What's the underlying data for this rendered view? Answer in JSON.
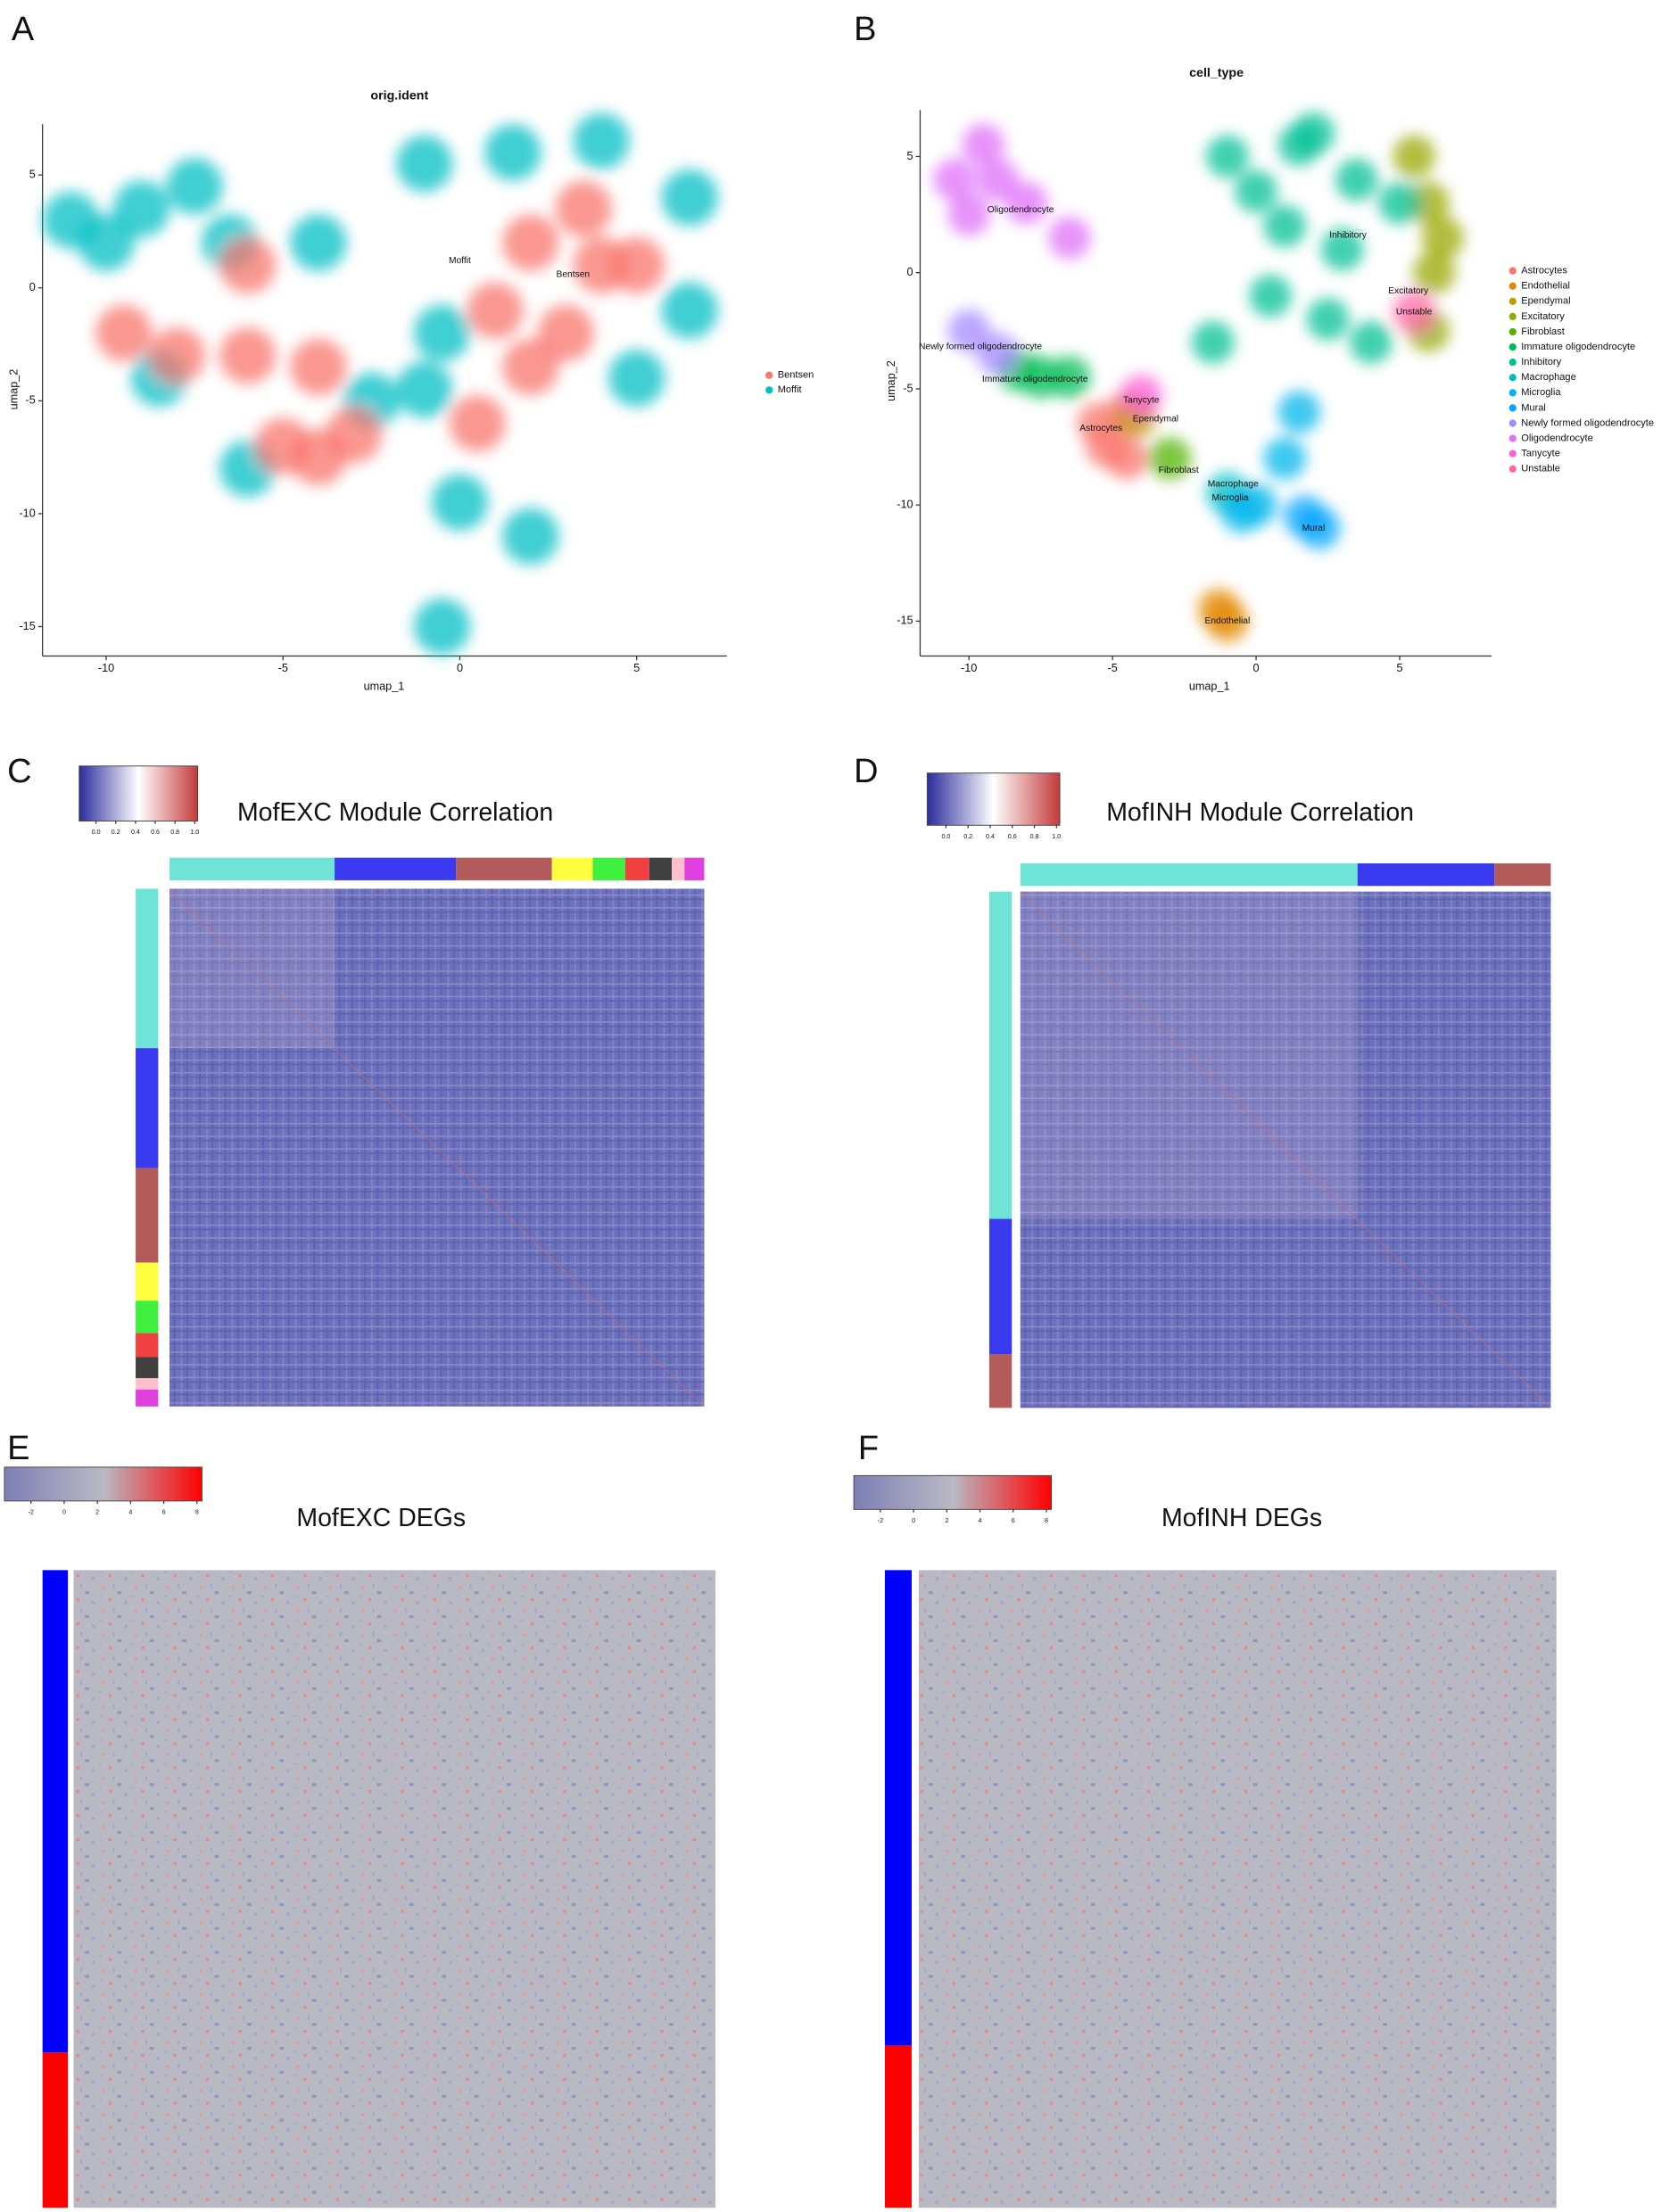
{
  "chart_data": [
    {
      "type": "scatter",
      "panel": "A",
      "title": "orig.ident",
      "xlabel": "umap_1",
      "ylabel": "umap_2",
      "xlim": [
        -11.8,
        7.55
      ],
      "ylim": [
        -16.3,
        7.25
      ],
      "xticks": [
        -10,
        -5,
        0,
        5
      ],
      "yticks": [
        -15,
        -10,
        -5,
        0,
        5
      ],
      "series": [
        {
          "name": "Bentsen",
          "color": "#F8766D",
          "x": [
            2,
            4,
            3,
            1,
            5,
            -5,
            -4,
            -8,
            -9.5,
            -6,
            -4,
            -6,
            0.5,
            -3,
            3.5,
            2
          ],
          "y": [
            2,
            1,
            -2,
            -1,
            1,
            -7,
            -7.5,
            -3,
            -2,
            -3,
            -3.5,
            1,
            -6,
            -6.5,
            3.5,
            -3.5
          ]
        },
        {
          "name": "Moffit",
          "color": "#00BFC4",
          "x": [
            -9,
            -7.5,
            -6.5,
            -10,
            -1,
            1.5,
            4,
            6.5,
            6.5,
            5,
            -0.5,
            -1,
            -8.5,
            -2.5,
            0,
            2,
            -0.5,
            -6,
            -11,
            -4
          ],
          "y": [
            3.5,
            4.5,
            2,
            2,
            5.5,
            6,
            6.5,
            4,
            -1,
            -4,
            -2,
            -4.5,
            -4,
            -5,
            -9.5,
            -11,
            -15,
            -8,
            3,
            2
          ]
        }
      ],
      "annotations": [
        {
          "text": "Moffit",
          "x": 0,
          "y": 1.2
        },
        {
          "text": "Bentsen",
          "x": 3.2,
          "y": 0.6
        }
      ]
    },
    {
      "type": "scatter",
      "panel": "B",
      "title": "cell_type",
      "xlabel": "umap_1",
      "ylabel": "umap_2",
      "xlim": [
        -11.7,
        8.2
      ],
      "ylim": [
        -16.5,
        7
      ],
      "xticks": [
        -10,
        -5,
        0,
        5
      ],
      "yticks": [
        -15,
        -10,
        -5,
        0,
        5
      ],
      "series": [
        {
          "name": "Astrocytes",
          "color": "#F8766D",
          "x": [
            -5.2,
            -4.5,
            -4.5,
            -5.5
          ],
          "y": [
            -7.5,
            -8,
            -6,
            -6.5
          ]
        },
        {
          "name": "Endothelial",
          "color": "#E38900",
          "x": [
            -1,
            -1.3
          ],
          "y": [
            -15,
            -14.5
          ]
        },
        {
          "name": "Ependymal",
          "color": "#C49A00",
          "x": [
            -4.2
          ],
          "y": [
            -6.2
          ]
        },
        {
          "name": "Excitatory",
          "color": "#99A800",
          "x": [
            6,
            6.2,
            6,
            5.5,
            6.5
          ],
          "y": [
            3,
            0,
            -2.5,
            5,
            1.5
          ]
        },
        {
          "name": "Fibroblast",
          "color": "#53B400",
          "x": [
            -3
          ],
          "y": [
            -8
          ]
        },
        {
          "name": "Immature oligodendrocyte",
          "color": "#00BC56",
          "x": [
            -7.5,
            -6.5,
            -8.3
          ],
          "y": [
            -4.5,
            -4.5,
            -4.2
          ]
        },
        {
          "name": "Inhibitory",
          "color": "#00C094",
          "x": [
            -1,
            1.5,
            3.5,
            1,
            3,
            0.5,
            2.5,
            -1.5,
            4,
            5,
            0,
            2
          ],
          "y": [
            5,
            5.5,
            4,
            2,
            1,
            -1,
            -2,
            -3,
            -3,
            3,
            3.5,
            6
          ]
        },
        {
          "name": "Macrophage",
          "color": "#00BFC4",
          "x": [
            -1
          ],
          "y": [
            -9.5
          ]
        },
        {
          "name": "Microglia",
          "color": "#00B6EB",
          "x": [
            0,
            1,
            1.5,
            -0.5
          ],
          "y": [
            -10,
            -8,
            -6,
            -10.3
          ]
        },
        {
          "name": "Mural",
          "color": "#06A4FF",
          "x": [
            2.2,
            1.7
          ],
          "y": [
            -11,
            -10.5
          ]
        },
        {
          "name": "Newly formed oligodendrocyte",
          "color": "#A58AFF",
          "x": [
            -10,
            -9
          ],
          "y": [
            -2.5,
            -3.5
          ]
        },
        {
          "name": "Oligodendrocyte",
          "color": "#DF70F8",
          "x": [
            -9,
            -8,
            -10,
            -6.5,
            -9.5,
            -10.5
          ],
          "y": [
            4,
            3,
            2.5,
            1.5,
            5.5,
            4
          ]
        },
        {
          "name": "Tanycyte",
          "color": "#FB61D7",
          "x": [
            -4
          ],
          "y": [
            -5.3
          ]
        },
        {
          "name": "Unstable",
          "color": "#FF66A8",
          "x": [
            5.5
          ],
          "y": [
            -1.7
          ]
        }
      ],
      "annotations": [
        {
          "text": "Oligodendrocyte",
          "x": -8.2,
          "y": 2.7
        },
        {
          "text": "Inhibitory",
          "x": 3.2,
          "y": 1.6
        },
        {
          "text": "Excitatory",
          "x": 5.3,
          "y": -0.8
        },
        {
          "text": "Unstable",
          "x": 5.5,
          "y": -1.7
        },
        {
          "text": "Newly formed oligodendrocyte",
          "x": -9.6,
          "y": -3.2
        },
        {
          "text": "Immature oligodendrocyte",
          "x": -7.7,
          "y": -4.6
        },
        {
          "text": "Tanycyte",
          "x": -4,
          "y": -5.5
        },
        {
          "text": "Ependymal",
          "x": -3.5,
          "y": -6.3
        },
        {
          "text": "Astrocytes",
          "x": -5.4,
          "y": -6.7
        },
        {
          "text": "Fibroblast",
          "x": -2.7,
          "y": -8.5
        },
        {
          "text": "Macrophage",
          "x": -0.8,
          "y": -9.1
        },
        {
          "text": "Microglia",
          "x": -0.9,
          "y": -9.7
        },
        {
          "text": "Mural",
          "x": 2,
          "y": -11
        },
        {
          "text": "Endothelial",
          "x": -1,
          "y": -15
        }
      ]
    },
    {
      "type": "heatmap",
      "panel": "C",
      "title": "MofEXC Module Correlation",
      "fill": "corr",
      "zlim": [
        -0.17,
        1.03
      ],
      "zticks": [
        {
          "value": 0,
          "label": "0.0"
        },
        {
          "value": 0.2,
          "label": "0.2"
        },
        {
          "value": 0.4,
          "label": "0.4"
        },
        {
          "value": 0.6,
          "label": "0.6"
        },
        {
          "value": 0.8,
          "label": "0.8"
        },
        {
          "value": 1,
          "label": "1.0"
        }
      ],
      "colorbar": [
        "#2c2c9c",
        "#ffffff",
        "#c33a3a"
      ],
      "col_groups": [
        {
          "color": "#6fe4d6",
          "size": 117
        },
        {
          "color": "#3a3af0",
          "size": 86
        },
        {
          "color": "#b35a5a",
          "size": 68
        },
        {
          "color": "#ffff40",
          "size": 29
        },
        {
          "color": "#40f040",
          "size": 23
        },
        {
          "color": "#f04040",
          "size": 17
        },
        {
          "color": "#404040",
          "size": 16
        },
        {
          "color": "#ffc0cb",
          "size": 9
        },
        {
          "color": "#e040e0",
          "size": 14
        }
      ],
      "row_groups": [
        {
          "color": "#6fe4d6",
          "size": 113
        },
        {
          "color": "#3a3af0",
          "size": 85
        },
        {
          "color": "#b35a5a",
          "size": 67
        },
        {
          "color": "#ffff40",
          "size": 27
        },
        {
          "color": "#40f040",
          "size": 23
        },
        {
          "color": "#f04040",
          "size": 17
        },
        {
          "color": "#404040",
          "size": 15
        },
        {
          "color": "#ffc0cb",
          "size": 8
        },
        {
          "color": "#e040e0",
          "size": 12
        }
      ]
    },
    {
      "type": "heatmap",
      "panel": "D",
      "title": "MofINH Module Correlation",
      "fill": "corr",
      "zlim": [
        -0.17,
        1.03
      ],
      "zticks": [
        {
          "value": 0,
          "label": "0.0"
        },
        {
          "value": 0.2,
          "label": "0.2"
        },
        {
          "value": 0.4,
          "label": "0.4"
        },
        {
          "value": 0.6,
          "label": "0.6"
        },
        {
          "value": 0.8,
          "label": "0.8"
        },
        {
          "value": 1,
          "label": "1.0"
        }
      ],
      "colorbar": [
        "#2c2c9c",
        "#ffffff",
        "#c33a3a"
      ],
      "col_groups": [
        {
          "color": "#6fe4d6",
          "size": 239
        },
        {
          "color": "#3a3af0",
          "size": 97
        },
        {
          "color": "#b35a5a",
          "size": 40
        }
      ],
      "row_groups": [
        {
          "color": "#6fe4d6",
          "size": 232
        },
        {
          "color": "#3a3af0",
          "size": 96
        },
        {
          "color": "#b35a5a",
          "size": 38
        }
      ]
    },
    {
      "type": "heatmap",
      "panel": "E",
      "title": "MofEXC DEGs",
      "fill": "deg",
      "zlim": [
        -3.6,
        8.3
      ],
      "zticks": [
        -2,
        0,
        2,
        4,
        6,
        8
      ],
      "colorbar": [
        "#7d7fb5",
        "#b9b9c4",
        "#ff0000"
      ],
      "row_groups": [
        {
          "color": "#0000ff",
          "size": 342
        },
        {
          "color": "#ff0000",
          "size": 110
        }
      ]
    },
    {
      "type": "heatmap",
      "panel": "F",
      "title": "MofINH DEGs",
      "fill": "deg",
      "zlim": [
        -3.6,
        8.3
      ],
      "zticks": [
        -2,
        0,
        2,
        4,
        6,
        8
      ],
      "colorbar": [
        "#7d7fb5",
        "#b9b9c4",
        "#ff0000"
      ],
      "row_groups": [
        {
          "color": "#0000ff",
          "size": 337
        },
        {
          "color": "#ff0000",
          "size": 115
        }
      ]
    }
  ]
}
